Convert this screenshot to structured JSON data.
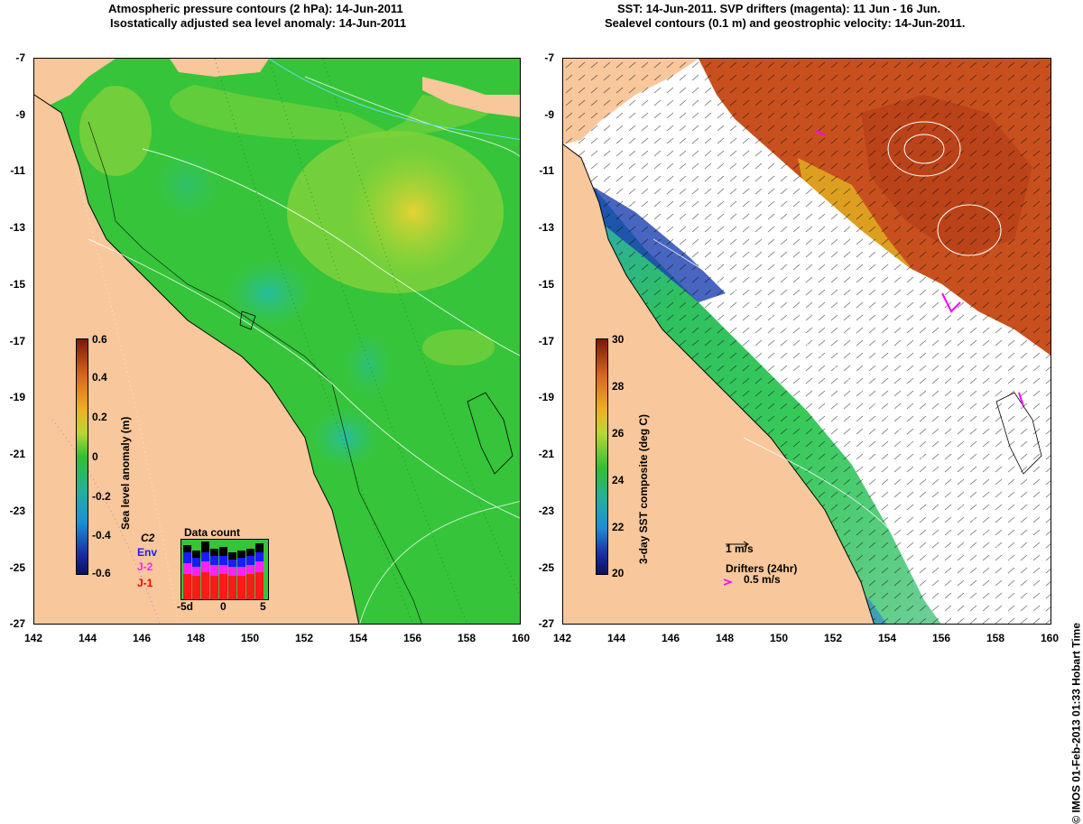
{
  "left_panel": {
    "title_line1": "Atmospheric pressure contours (2 hPa): 14-Jun-2011",
    "title_line2": "Isostatically adjusted sea level anomaly: 14-Jun-2011",
    "colorbar_label": "Sea level anomaly (m)",
    "colorbar_ticks": [
      "0.6",
      "0.4",
      "0.2",
      "0",
      "-0.2",
      "-0.4",
      "-0.6"
    ],
    "legend": {
      "c2": "C2",
      "env": "Env",
      "j2": "J-2",
      "j1": "J-1"
    },
    "data_count": {
      "title": "Data count",
      "xticks": [
        "-5d",
        "0",
        "5"
      ]
    }
  },
  "right_panel": {
    "title_line1": "SST: 14-Jun-2011. SVP drifters (magenta): 11 Jun - 16 Jun.",
    "title_line2": "Sealevel contours (0.1 m) and geostrophic velocity: 14-Jun-2011.",
    "colorbar_label": "3-day SST composite (deg C)",
    "colorbar_ticks": [
      "30",
      "28",
      "26",
      "24",
      "22",
      "20"
    ],
    "scale_arrow_label": "1 m/s",
    "drifters_label": "Drifters (24hr)",
    "drifters_speed": "0.5 m/s"
  },
  "axes": {
    "y_ticks": [
      "-7",
      "-9",
      "-11",
      "-13",
      "-15",
      "-17",
      "-19",
      "-21",
      "-23",
      "-25",
      "-27"
    ],
    "x_ticks": [
      "142",
      "144",
      "146",
      "148",
      "150",
      "152",
      "154",
      "156",
      "158",
      "160"
    ]
  },
  "credit": "© IMOS 01-Feb-2013 01:33 Hobart Time",
  "colors": {
    "land": "#f8c79b",
    "ocean_green": "#33cc33",
    "warm": "#c84a1e",
    "magenta": "#ff00ff"
  }
}
